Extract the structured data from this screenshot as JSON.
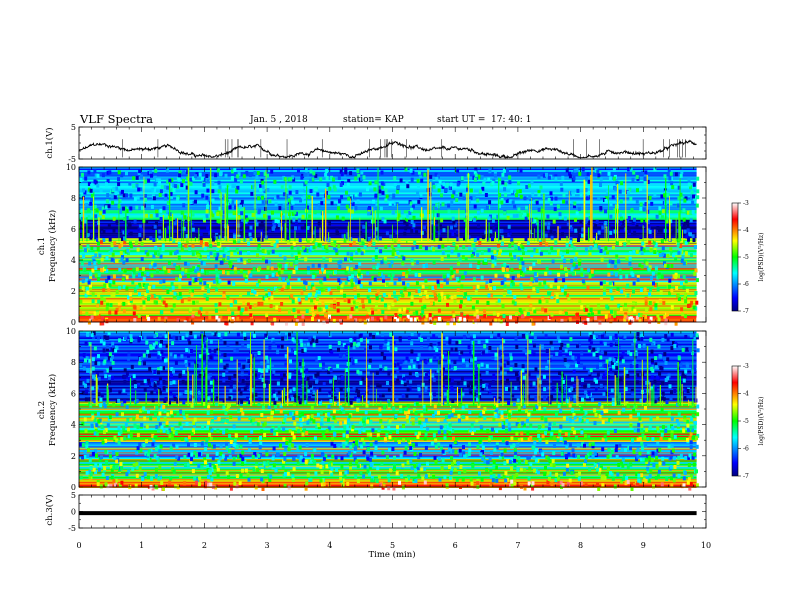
{
  "header": {
    "title": "VLF Spectra",
    "date": "Jan. 5 , 2018",
    "station": "station= KAP",
    "start": "start UT =",
    "start_time": "17: 40: 1"
  },
  "chart_data": [
    {
      "type": "line",
      "name": "ch1-waveform",
      "ylabel": "ch.1(V)",
      "ylim": [
        -5,
        5
      ],
      "yticks": [
        "5",
        "-5"
      ],
      "xlim": [
        0,
        10
      ],
      "x_extent": [
        0,
        9.85
      ],
      "description_values": {
        "baseline": -2.6,
        "amplitude_range": [
          -4.5,
          0.6
        ]
      }
    },
    {
      "type": "heatmap",
      "name": "ch1-spectrogram",
      "ylabel": "Frequency (kHz)",
      "ylabel_channel": "ch.1",
      "ylim": [
        0,
        10
      ],
      "yticks": [
        "0",
        "2",
        "4",
        "6",
        "8",
        "10"
      ],
      "xlim": [
        0,
        10
      ],
      "x_extent": [
        0,
        9.85
      ],
      "colorbar": {
        "label": "log(PSD)(V²/Hz)",
        "range": [
          -7,
          -3
        ],
        "ticks": [
          "-3",
          "-4",
          "-5",
          "-6",
          "-7"
        ]
      },
      "bands": [
        {
          "f": [
            0.0,
            0.5
          ],
          "log_psd": -3.8
        },
        {
          "f": [
            0.5,
            1.5
          ],
          "log_psd": -4.6
        },
        {
          "f": [
            1.5,
            2.6
          ],
          "log_psd": -4.9
        },
        {
          "f": [
            2.6,
            3.0
          ],
          "log_psd": -5.8
        },
        {
          "f": [
            3.0,
            3.6
          ],
          "log_psd": -5.1
        },
        {
          "f": [
            3.6,
            5.0
          ],
          "log_psd": -5.5
        },
        {
          "f": [
            5.0,
            5.4
          ],
          "log_psd": -4.8
        },
        {
          "f": [
            5.4,
            6.6
          ],
          "log_psd": -6.8
        },
        {
          "f": [
            6.6,
            7.4
          ],
          "log_psd": -5.6
        },
        {
          "f": [
            7.4,
            10.0
          ],
          "log_psd": -6.0
        }
      ]
    },
    {
      "type": "heatmap",
      "name": "ch2-spectrogram",
      "ylabel": "Frequency (kHz)",
      "ylabel_channel": "ch.2",
      "ylim": [
        0,
        10
      ],
      "yticks": [
        "0",
        "2",
        "4",
        "6",
        "8",
        "10"
      ],
      "xlim": [
        0,
        10
      ],
      "x_extent": [
        0,
        9.85
      ],
      "colorbar": {
        "label": "log(PSD)(V²/Hz)",
        "range": [
          -7,
          -3
        ],
        "ticks": [
          "-3",
          "-4",
          "-5",
          "-6",
          "-7"
        ]
      },
      "bands": [
        {
          "f": [
            0.0,
            0.5
          ],
          "log_psd": -4.0
        },
        {
          "f": [
            0.5,
            1.8
          ],
          "log_psd": -5.3
        },
        {
          "f": [
            1.8,
            3.0
          ],
          "log_psd": -5.8
        },
        {
          "f": [
            3.0,
            3.6
          ],
          "log_psd": -5.0
        },
        {
          "f": [
            3.6,
            4.2
          ],
          "log_psd": -5.4
        },
        {
          "f": [
            4.2,
            5.5
          ],
          "log_psd": -5.2
        },
        {
          "f": [
            5.5,
            7.5
          ],
          "log_psd": -6.6
        },
        {
          "f": [
            7.5,
            10.0
          ],
          "log_psd": -6.3
        }
      ]
    },
    {
      "type": "line",
      "name": "ch3-waveform",
      "ylabel": "ch.3(V)",
      "ylim": [
        -5,
        5
      ],
      "yticks": [
        "5",
        "0",
        "-5"
      ],
      "xlim": [
        0,
        10
      ],
      "x_extent": [
        0,
        9.85
      ],
      "constant_value": -0.5
    }
  ],
  "x_axis": {
    "label": "Time (min)",
    "ticks": [
      "0",
      "1",
      "2",
      "3",
      "4",
      "5",
      "6",
      "7",
      "8",
      "9",
      "10"
    ]
  }
}
